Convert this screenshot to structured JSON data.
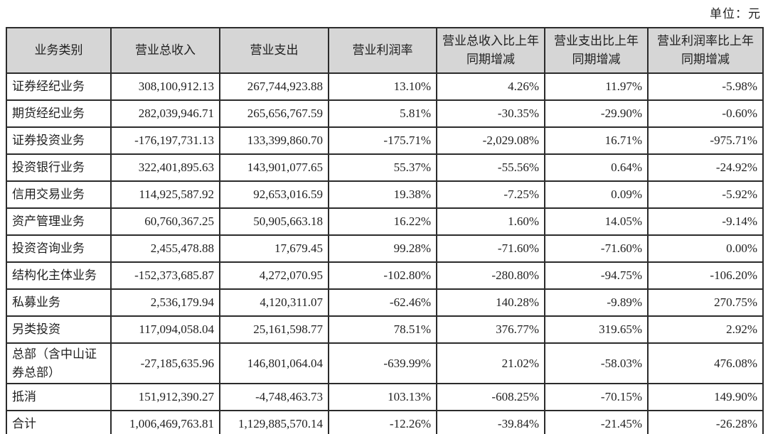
{
  "unit_label": "单位：元",
  "colors": {
    "header_bg": "#d6d6d6",
    "border": "#2b2b2b",
    "text": "#1f1f1f",
    "background": "#ffffff"
  },
  "table": {
    "headers": [
      "业务类别",
      "营业总收入",
      "营业支出",
      "营业利润率",
      "营业总收入比上年同期增减",
      "营业支出比上年同期增减",
      "营业利润率比上年同期增减"
    ],
    "rows": [
      [
        "证券经纪业务",
        "308,100,912.13",
        "267,744,923.88",
        "13.10%",
        "4.26%",
        "11.97%",
        "-5.98%"
      ],
      [
        "期货经纪业务",
        "282,039,946.71",
        "265,656,767.59",
        "5.81%",
        "-30.35%",
        "-29.90%",
        "-0.60%"
      ],
      [
        "证券投资业务",
        "-176,197,731.13",
        "133,399,860.70",
        "-175.71%",
        "-2,029.08%",
        "16.71%",
        "-975.71%"
      ],
      [
        "投资银行业务",
        "322,401,895.63",
        "143,901,077.65",
        "55.37%",
        "-55.56%",
        "0.64%",
        "-24.92%"
      ],
      [
        "信用交易业务",
        "114,925,587.92",
        "92,653,016.59",
        "19.38%",
        "-7.25%",
        "0.09%",
        "-5.92%"
      ],
      [
        "资产管理业务",
        "60,760,367.25",
        "50,905,663.18",
        "16.22%",
        "1.60%",
        "14.05%",
        "-9.14%"
      ],
      [
        "投资咨询业务",
        "2,455,478.88",
        "17,679.45",
        "99.28%",
        "-71.60%",
        "-71.60%",
        "0.00%"
      ],
      [
        "结构化主体业务",
        "-152,373,685.87",
        "4,272,070.95",
        "-102.80%",
        "-280.80%",
        "-94.75%",
        "-106.20%"
      ],
      [
        "私募业务",
        "2,536,179.94",
        "4,120,311.07",
        "-62.46%",
        "140.28%",
        "-9.89%",
        "270.75%"
      ],
      [
        "另类投资",
        "117,094,058.04",
        "25,161,598.77",
        "78.51%",
        "376.77%",
        "319.65%",
        "2.92%"
      ],
      [
        "总部（含中山证券总部）",
        "-27,185,635.96",
        "146,801,064.04",
        "-639.99%",
        "21.02%",
        "-58.03%",
        "476.08%"
      ],
      [
        "抵消",
        "151,912,390.27",
        "-4,748,463.73",
        "103.13%",
        "-608.25%",
        "-70.15%",
        "149.90%"
      ],
      [
        "合计",
        "1,006,469,763.81",
        "1,129,885,570.14",
        "-12.26%",
        "-39.84%",
        "-21.45%",
        "-26.28%"
      ]
    ]
  }
}
